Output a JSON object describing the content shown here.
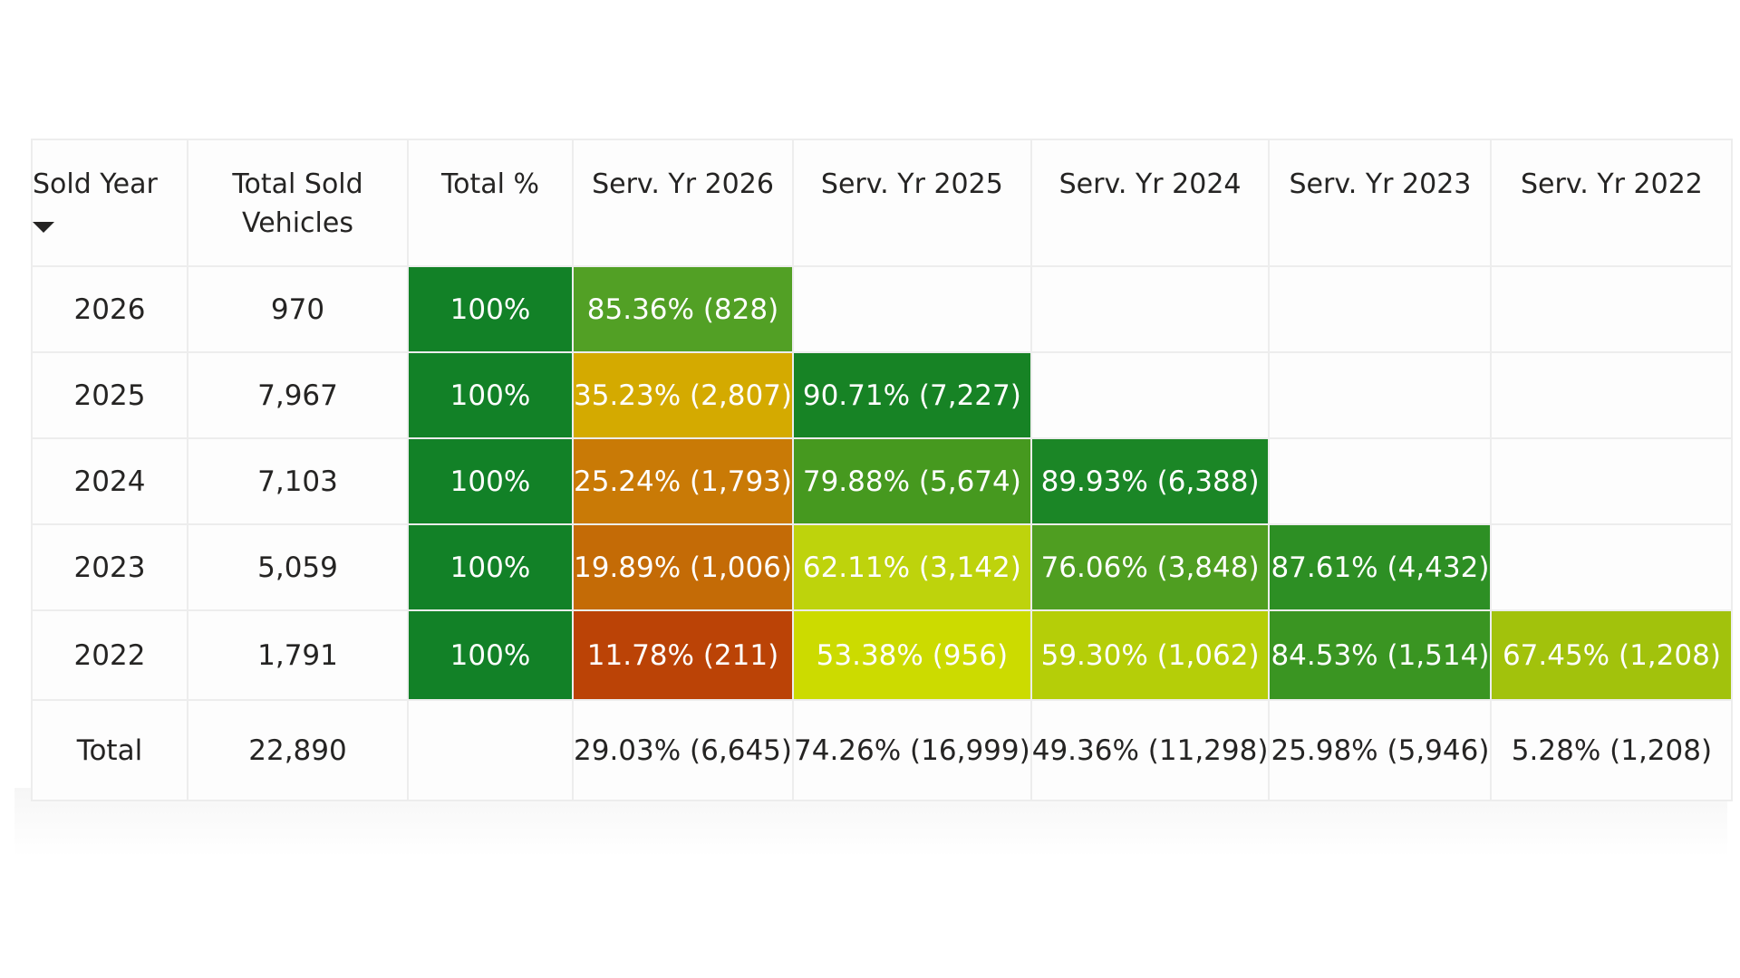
{
  "table": {
    "headers": {
      "sold_year": "Sold Year",
      "total_sold_vehicles": "Total Sold Vehicles",
      "total_pct": "Total %",
      "serv_2026": "Serv. Yr 2026",
      "serv_2025": "Serv. Yr 2025",
      "serv_2024": "Serv. Yr 2024",
      "serv_2023": "Serv. Yr 2023",
      "serv_2022": "Serv. Yr 2022"
    },
    "rows": [
      {
        "year": "2026",
        "total": "970",
        "pct": "100%",
        "cells": [
          "85.36% (828)",
          "",
          "",
          "",
          ""
        ]
      },
      {
        "year": "2025",
        "total": "7,967",
        "pct": "100%",
        "cells": [
          "35.23% (2,807)",
          "90.71% (7,227)",
          "",
          "",
          ""
        ]
      },
      {
        "year": "2024",
        "total": "7,103",
        "pct": "100%",
        "cells": [
          "25.24% (1,793)",
          "79.88% (5,674)",
          "89.93% (6,388)",
          "",
          ""
        ]
      },
      {
        "year": "2023",
        "total": "5,059",
        "pct": "100%",
        "cells": [
          "19.89% (1,006)",
          "62.11% (3,142)",
          "76.06% (3,848)",
          "87.61% (4,432)",
          ""
        ]
      },
      {
        "year": "2022",
        "total": "1,791",
        "pct": "100%",
        "cells": [
          "11.78% (211)",
          "53.38% (956)",
          "59.30% (1,062)",
          "84.53% (1,514)",
          "67.45% (1,208)"
        ]
      }
    ],
    "totals": {
      "label": "Total",
      "total": "22,890",
      "pct": "",
      "cells": [
        "29.03% (6,645)",
        "74.26% (16,999)",
        "49.36% (11,298)",
        "25.98% (5,946)",
        "5.28% (1,208)"
      ]
    },
    "colors": {
      "total_pct": "#128127",
      "r0": [
        "#52a025",
        null,
        null,
        null,
        null
      ],
      "r1": [
        "#d4aa00",
        "#178325",
        null,
        null,
        null
      ],
      "r2": [
        "#c97a06",
        "#46991f",
        "#1b8626",
        null,
        null
      ],
      "r3": [
        "#c46b06",
        "#bed30c",
        "#4f9e21",
        "#2d8f24",
        null
      ],
      "r4": [
        "#bb4306",
        "#ccdb00",
        "#b5ce08",
        "#3a9522",
        "#a2c20c"
      ]
    },
    "sort_indicator": "chevron-down-icon"
  }
}
